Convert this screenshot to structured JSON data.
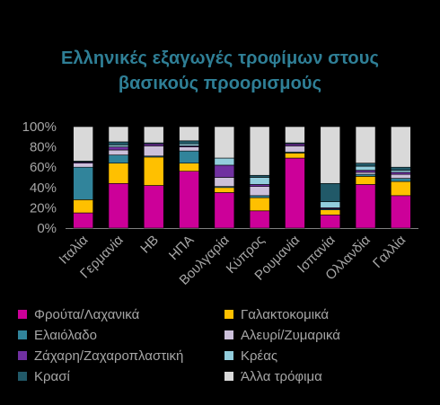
{
  "chart_data": {
    "type": "bar",
    "stacked": true,
    "normalized": true,
    "title_lines": [
      "Ελληνικές εξαγωγές τροφίμων στους",
      "βασικούς προορισμούς"
    ],
    "categories": [
      "Ιταλία",
      "Γερμανία",
      "ΗΒ",
      "ΗΠΑ",
      "Βουλγαρία",
      "Κύπρος",
      "Ρουμανία",
      "Ισπανία",
      "Ολλανδία",
      "Γαλλία"
    ],
    "y_ticks": [
      "0%",
      "20%",
      "40%",
      "60%",
      "80%",
      "100%"
    ],
    "ylim": [
      0,
      100
    ],
    "grid": false,
    "legend_position": "bottom",
    "series": [
      {
        "name": "Φρούτα/Λαχανικά",
        "color": "#cc0099",
        "values": [
          15,
          44,
          42,
          56,
          35,
          17,
          69,
          13,
          43,
          32
        ]
      },
      {
        "name": "Γαλακτοκομικά",
        "color": "#ffc000",
        "values": [
          13,
          20,
          28,
          8,
          5,
          13,
          5,
          5,
          8,
          14
        ]
      },
      {
        "name": "Ελαιόλαδο",
        "color": "#31849b",
        "values": [
          32,
          8,
          1,
          12,
          1,
          2,
          1,
          1,
          2,
          3
        ]
      },
      {
        "name": "Αλευρί/Ζυμαρικά",
        "color": "#ccc0da",
        "values": [
          4,
          5,
          10,
          4,
          9,
          9,
          6,
          0,
          2,
          4
        ]
      },
      {
        "name": "Ζάχαρη/Ζαχαροπλαστική",
        "color": "#7030a0",
        "values": [
          1,
          3,
          2,
          1,
          12,
          2,
          2,
          1,
          2,
          2
        ]
      },
      {
        "name": "Κρέας",
        "color": "#92cddc",
        "values": [
          0,
          2,
          0,
          2,
          7,
          7,
          0,
          6,
          4,
          2
        ]
      },
      {
        "name": "Κρασί",
        "color": "#215968",
        "values": [
          1,
          3,
          1,
          3,
          0,
          2,
          1,
          18,
          3,
          3
        ]
      },
      {
        "name": "Άλλα τρόφιμα",
        "color": "#d9d9d9",
        "values": [
          34,
          15,
          16,
          14,
          31,
          48,
          16,
          56,
          36,
          40
        ]
      }
    ]
  }
}
